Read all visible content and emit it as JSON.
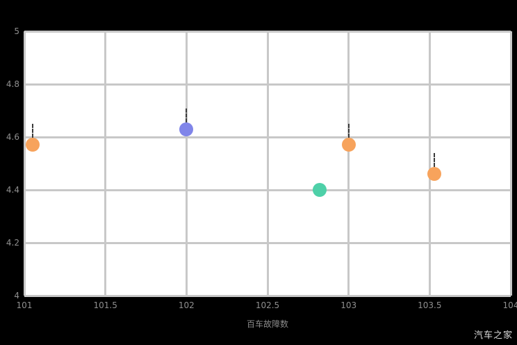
{
  "watermark": {
    "text": "汽车之家"
  },
  "chart_data": {
    "type": "scatter",
    "title": "",
    "xlabel": "百车故障数",
    "ylabel": "",
    "xlim": [
      101,
      104
    ],
    "ylim": [
      4,
      5
    ],
    "x_ticks": [
      101,
      101.5,
      102,
      102.5,
      103,
      103.5,
      104
    ],
    "x_tick_labels": [
      "101",
      "101.5",
      "102",
      "102.5",
      "103",
      "103.5",
      "104"
    ],
    "y_ticks": [
      4,
      4.2,
      4.4,
      4.6,
      4.8,
      5
    ],
    "y_tick_labels": [
      "4",
      "4.2",
      "4.4",
      "4.6",
      "4.8",
      "5"
    ],
    "grid": true,
    "legend": "none",
    "background_color": "#000000",
    "plot_background_color": "#ffffff",
    "grid_color": "#c8c8c8",
    "tick_label_color": "#8f8f8f",
    "points": [
      {
        "x": 101.05,
        "y": 4.57,
        "color": "#f7a35c",
        "annotated": true
      },
      {
        "x": 102.0,
        "y": 4.63,
        "color": "#8085e9",
        "annotated": true
      },
      {
        "x": 102.82,
        "y": 4.4,
        "color": "#4ed0a8",
        "annotated": false
      },
      {
        "x": 103.0,
        "y": 4.57,
        "color": "#f7a35c",
        "annotated": true
      },
      {
        "x": 103.53,
        "y": 4.46,
        "color": "#f7a35c",
        "annotated": true
      }
    ]
  }
}
